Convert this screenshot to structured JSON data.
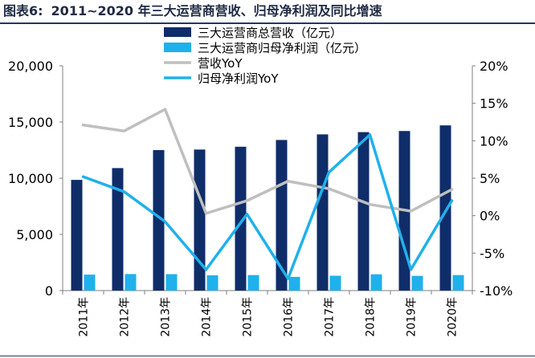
{
  "figure": {
    "label": "图表6:",
    "title": "2011~2020 年三大运营商营收、归母净利润及同比增速"
  },
  "chart_data": {
    "type": "bar",
    "categories": [
      "2011年",
      "2012年",
      "2013年",
      "2014年",
      "2015年",
      "2016年",
      "2017年",
      "2018年",
      "2019年",
      "2020年"
    ],
    "series": [
      {
        "name": "三大运营商总营收（亿元）",
        "type": "bar",
        "axis": "left",
        "color": "#0f2d69",
        "values": [
          9850,
          10900,
          12500,
          12550,
          12800,
          13400,
          13900,
          14100,
          14200,
          14700
        ]
      },
      {
        "name": "三大运营商归母净利润（亿元）",
        "type": "bar",
        "axis": "left",
        "color": "#1fb1ec",
        "values": [
          1420,
          1470,
          1460,
          1360,
          1380,
          1220,
          1320,
          1450,
          1310,
          1380
        ]
      },
      {
        "name": "营收YoY",
        "type": "line",
        "axis": "right",
        "color": "#bfbfbf",
        "values": [
          12.1,
          11.3,
          14.2,
          0.3,
          2.0,
          4.6,
          3.6,
          1.5,
          0.6,
          3.5
        ]
      },
      {
        "name": "归母净利润YoY",
        "type": "line",
        "axis": "right",
        "color": "#1fb1ec",
        "values": [
          5.2,
          3.2,
          -0.8,
          -7.2,
          0.2,
          -8.4,
          5.8,
          10.8,
          -7.2,
          2.0
        ]
      }
    ],
    "y_left": {
      "min": 0,
      "max": 20000,
      "ticks": [
        "0",
        "5,000",
        "10,000",
        "15,000",
        "20,000"
      ],
      "tick_values": [
        0,
        5000,
        10000,
        15000,
        20000
      ]
    },
    "y_right": {
      "min": -10,
      "max": 20,
      "ticks": [
        "-10%",
        "-5%",
        "0%",
        "5%",
        "10%",
        "15%",
        "20%"
      ],
      "tick_values": [
        -10,
        -5,
        0,
        5,
        10,
        15,
        20
      ]
    },
    "grid": false,
    "legend_position": "top-center"
  }
}
